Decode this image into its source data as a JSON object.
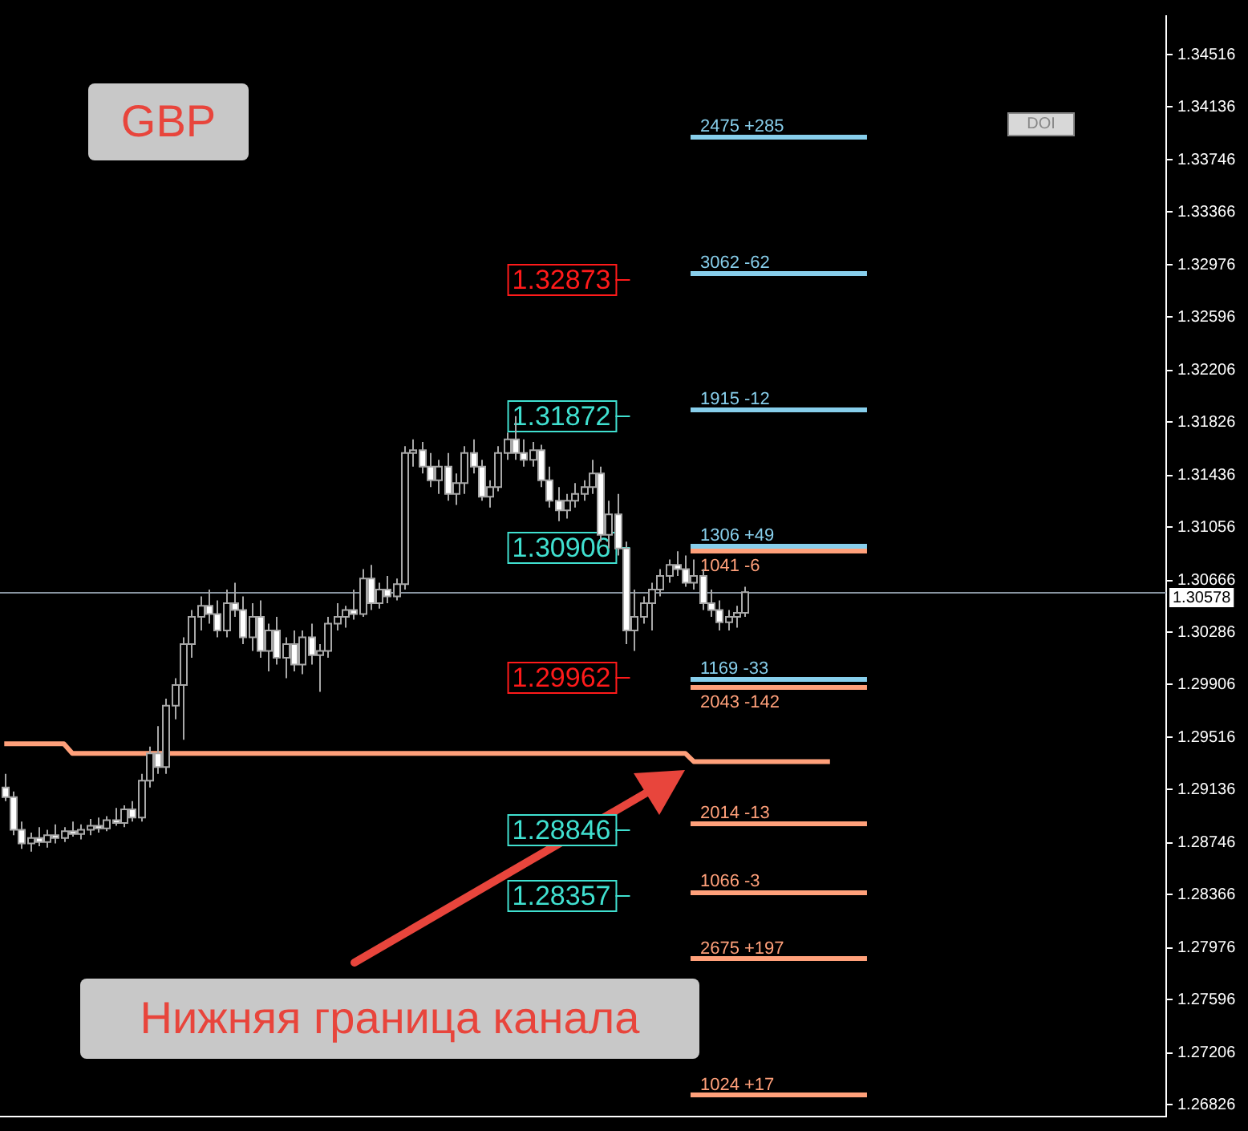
{
  "chart_data": {
    "type": "candlestick",
    "title": "GBP",
    "categories": [
      null,
      null,
      null,
      null,
      null,
      null,
      null,
      null,
      null,
      null,
      null,
      null,
      null,
      null,
      null,
      null,
      null,
      null,
      null,
      null,
      null,
      null,
      null,
      null,
      null,
      null,
      null,
      null,
      null,
      null,
      null,
      null,
      null,
      null,
      null,
      null,
      null,
      null,
      null,
      null,
      null,
      null,
      null,
      null,
      null,
      null,
      null,
      null,
      null,
      null,
      null,
      null,
      null,
      null,
      null,
      null,
      null,
      null,
      null,
      null,
      null,
      null,
      null,
      null,
      null,
      null,
      null,
      null,
      null,
      null,
      null,
      null,
      null,
      null,
      null,
      null,
      null,
      null,
      null,
      null,
      null,
      null,
      null,
      null,
      null,
      null,
      null,
      null,
      null,
      null,
      null,
      null,
      null,
      null,
      null,
      null,
      null,
      null,
      null,
      null,
      null,
      null,
      null,
      null,
      null,
      null,
      null,
      null,
      null,
      null,
      null,
      null,
      null,
      null,
      null,
      null,
      null,
      null,
      null,
      null,
      null,
      null,
      null,
      null,
      null,
      null,
      null,
      null,
      null,
      null,
      null,
      null,
      null,
      null,
      null,
      null,
      null
    ],
    "ohlc": [
      [
        1.2915,
        1.2925,
        1.2905,
        1.2908
      ],
      [
        1.2908,
        1.2912,
        1.288,
        1.2884
      ],
      [
        1.2884,
        1.289,
        1.287,
        1.2874
      ],
      [
        1.2874,
        1.2882,
        1.2868,
        1.2878
      ],
      [
        1.2878,
        1.2886,
        1.2872,
        1.2875
      ],
      [
        1.2875,
        1.2884,
        1.2871,
        1.288
      ],
      [
        1.288,
        1.2888,
        1.2874,
        1.2878
      ],
      [
        1.2878,
        1.2886,
        1.2875,
        1.2883
      ],
      [
        1.2883,
        1.289,
        1.2879,
        1.2881
      ],
      [
        1.2881,
        1.2888,
        1.2877,
        1.2884
      ],
      [
        1.2884,
        1.2892,
        1.288,
        1.2887
      ],
      [
        1.2887,
        1.2893,
        1.2882,
        1.2885
      ],
      [
        1.2885,
        1.2894,
        1.2883,
        1.2891
      ],
      [
        1.2891,
        1.29,
        1.2887,
        1.2889
      ],
      [
        1.2889,
        1.2902,
        1.2886,
        1.2899
      ],
      [
        1.2899,
        1.2905,
        1.289,
        1.2893
      ],
      [
        1.2893,
        1.2925,
        1.289,
        1.292
      ],
      [
        1.292,
        1.2945,
        1.2915,
        1.294
      ],
      [
        1.294,
        1.296,
        1.2925,
        1.293
      ],
      [
        1.293,
        1.298,
        1.2925,
        1.2975
      ],
      [
        1.2975,
        1.2995,
        1.2965,
        1.299
      ],
      [
        1.299,
        1.3025,
        1.295,
        1.302
      ],
      [
        1.302,
        1.3045,
        1.301,
        1.304
      ],
      [
        1.304,
        1.3055,
        1.303,
        1.3048
      ],
      [
        1.3048,
        1.306,
        1.3035,
        1.3042
      ],
      [
        1.3042,
        1.3052,
        1.3025,
        1.303
      ],
      [
        1.303,
        1.306,
        1.3025,
        1.305
      ],
      [
        1.305,
        1.3065,
        1.304,
        1.3045
      ],
      [
        1.3045,
        1.3055,
        1.302,
        1.3025
      ],
      [
        1.3025,
        1.305,
        1.3015,
        1.304
      ],
      [
        1.304,
        1.3052,
        1.301,
        1.3015
      ],
      [
        1.3015,
        1.3035,
        1.3,
        1.303
      ],
      [
        1.303,
        1.304,
        1.3005,
        1.301
      ],
      [
        1.301,
        1.3025,
        1.2995,
        1.302
      ],
      [
        1.302,
        1.303,
        1.3,
        1.3005
      ],
      [
        1.3005,
        1.303,
        1.2998,
        1.3025
      ],
      [
        1.3025,
        1.3035,
        1.3005,
        1.3012
      ],
      [
        1.3012,
        1.302,
        1.2985,
        1.3015
      ],
      [
        1.3015,
        1.304,
        1.301,
        1.3035
      ],
      [
        1.3035,
        1.305,
        1.303,
        1.304
      ],
      [
        1.304,
        1.3048,
        1.3032,
        1.3045
      ],
      [
        1.3045,
        1.306,
        1.3038,
        1.3042
      ],
      [
        1.3042,
        1.3075,
        1.304,
        1.3068
      ],
      [
        1.3068,
        1.3078,
        1.3045,
        1.305
      ],
      [
        1.305,
        1.3065,
        1.3046,
        1.306
      ],
      [
        1.306,
        1.307,
        1.305,
        1.3055
      ],
      [
        1.3055,
        1.3068,
        1.3052,
        1.3064
      ],
      [
        1.3064,
        1.3165,
        1.306,
        1.316
      ],
      [
        1.316,
        1.317,
        1.315,
        1.3162
      ],
      [
        1.3162,
        1.3168,
        1.3145,
        1.315
      ],
      [
        1.315,
        1.316,
        1.3135,
        1.314
      ],
      [
        1.314,
        1.3155,
        1.313,
        1.315
      ],
      [
        1.315,
        1.316,
        1.3125,
        1.313
      ],
      [
        1.313,
        1.3145,
        1.3122,
        1.3138
      ],
      [
        1.3138,
        1.3165,
        1.313,
        1.316
      ],
      [
        1.316,
        1.317,
        1.3145,
        1.315
      ],
      [
        1.315,
        1.3155,
        1.3125,
        1.3128
      ],
      [
        1.3128,
        1.314,
        1.312,
        1.3135
      ],
      [
        1.3135,
        1.3165,
        1.3132,
        1.316
      ],
      [
        1.316,
        1.3175,
        1.3155,
        1.317
      ],
      [
        1.317,
        1.3187,
        1.3155,
        1.316
      ],
      [
        1.316,
        1.317,
        1.315,
        1.3155
      ],
      [
        1.3155,
        1.3168,
        1.315,
        1.3162
      ],
      [
        1.3162,
        1.3166,
        1.3135,
        1.314
      ],
      [
        1.314,
        1.315,
        1.312,
        1.3125
      ],
      [
        1.3125,
        1.3135,
        1.311,
        1.3118
      ],
      [
        1.3118,
        1.313,
        1.3112,
        1.3125
      ],
      [
        1.3125,
        1.3138,
        1.312,
        1.313
      ],
      [
        1.313,
        1.314,
        1.3125,
        1.3135
      ],
      [
        1.3135,
        1.3155,
        1.313,
        1.3145
      ],
      [
        1.3145,
        1.315,
        1.3095,
        1.31
      ],
      [
        1.31,
        1.3125,
        1.309,
        1.3115
      ],
      [
        1.3115,
        1.313,
        1.3085,
        1.309
      ],
      [
        1.309,
        1.3095,
        1.302,
        1.303
      ],
      [
        1.303,
        1.306,
        1.3015,
        1.304
      ],
      [
        1.304,
        1.3055,
        1.3035,
        1.305
      ],
      [
        1.305,
        1.3065,
        1.303,
        1.306
      ],
      [
        1.306,
        1.3075,
        1.3055,
        1.307
      ],
      [
        1.307,
        1.3082,
        1.3065,
        1.3078
      ],
      [
        1.3078,
        1.3088,
        1.307,
        1.3075
      ],
      [
        1.3075,
        1.3085,
        1.3062,
        1.3065
      ],
      [
        1.3065,
        1.3082,
        1.306,
        1.307
      ],
      [
        1.307,
        1.3075,
        1.3045,
        1.305
      ],
      [
        1.305,
        1.306,
        1.304,
        1.3045
      ],
      [
        1.3045,
        1.3052,
        1.303,
        1.3036
      ],
      [
        1.3036,
        1.3045,
        1.303,
        1.304
      ],
      [
        1.304,
        1.3048,
        1.3032,
        1.3043
      ],
      [
        1.3043,
        1.3062,
        1.304,
        1.3058
      ],
      null,
      null,
      null,
      null,
      null,
      null,
      null,
      null,
      null,
      null,
      null,
      null,
      null,
      null,
      null,
      null,
      null,
      null,
      null,
      null,
      null,
      null,
      null,
      null,
      null,
      null,
      null,
      null,
      null,
      null,
      null,
      null,
      null,
      null,
      null,
      null,
      null,
      null,
      null,
      null,
      null,
      null,
      null,
      null,
      null,
      null,
      null,
      null,
      null
    ],
    "series": [
      {
        "type": "line",
        "color": "#ffa07a",
        "values": [
          1.2947,
          1.2947,
          1.2947,
          1.2947,
          1.2947,
          1.2947,
          1.2947,
          1.2947,
          1.294,
          1.294,
          1.294,
          1.294,
          1.294,
          1.294,
          1.294,
          1.294,
          1.294,
          1.294,
          1.294,
          1.294,
          1.294,
          1.294,
          1.294,
          1.294,
          1.294,
          1.294,
          1.294,
          1.294,
          1.294,
          1.294,
          1.294,
          1.294,
          1.294,
          1.294,
          1.294,
          1.294,
          1.294,
          1.294,
          1.294,
          1.294,
          1.294,
          1.294,
          1.294,
          1.294,
          1.294,
          1.294,
          1.294,
          1.294,
          1.294,
          1.294,
          1.294,
          1.294,
          1.294,
          1.294,
          1.294,
          1.294,
          1.294,
          1.294,
          1.294,
          1.294,
          1.294,
          1.294,
          1.294,
          1.294,
          1.294,
          1.294,
          1.294,
          1.294,
          1.294,
          1.294,
          1.294,
          1.294,
          1.294,
          1.294,
          1.294,
          1.294,
          1.294,
          1.294,
          1.294,
          1.294,
          1.294,
          1.2934,
          1.2934,
          1.2934,
          1.2934,
          1.2934,
          1.2934,
          1.2934,
          1.2934,
          1.2934,
          1.2934,
          1.2934,
          1.2934,
          1.2934,
          1.2934,
          1.2934,
          1.2934,
          1.2934,
          null,
          null,
          null,
          null,
          null,
          null,
          null,
          null,
          null,
          null,
          null,
          null,
          null,
          null,
          null,
          null,
          null,
          null,
          null,
          null,
          null,
          null,
          null,
          null,
          null,
          null,
          null,
          null,
          null,
          null,
          null,
          null,
          null,
          null,
          null,
          null,
          null,
          null,
          null
        ]
      }
    ],
    "ylim": [
      1.2674,
      1.348
    ],
    "yticks": [
      1.34516,
      1.34136,
      1.33746,
      1.33366,
      1.32976,
      1.32596,
      1.32206,
      1.31826,
      1.31436,
      1.31056,
      1.30666,
      1.30286,
      1.29906,
      1.29516,
      1.29136,
      1.28746,
      1.28366,
      1.27976,
      1.27596,
      1.27206,
      1.26826
    ],
    "tick_labels": "y",
    "grid": false,
    "legend": false,
    "ref_lines": [
      {
        "axis": "y",
        "value": 1.30578,
        "label": "1.30578",
        "color": "#8894a0"
      },
      {
        "axis": "y",
        "value": 1.3392,
        "color": "#87ceeb"
      },
      {
        "axis": "y",
        "value": 1.3292,
        "color": "#87ceeb"
      },
      {
        "axis": "y",
        "value": 1.3192,
        "color": "#87ceeb"
      },
      {
        "axis": "y",
        "value": 1.3092,
        "color": "#87ceeb"
      },
      {
        "axis": "y",
        "value": 1.3089,
        "color": "#ffa07a"
      },
      {
        "axis": "y",
        "value": 1.2995,
        "color": "#87ceeb"
      },
      {
        "axis": "y",
        "value": 1.2989,
        "color": "#ffa07a"
      },
      {
        "axis": "y",
        "value": 1.2889,
        "color": "#ffa07a"
      },
      {
        "axis": "y",
        "value": 1.2839,
        "color": "#ffa07a"
      },
      {
        "axis": "y",
        "value": 1.279,
        "color": "#ffa07a"
      },
      {
        "axis": "y",
        "value": 1.269,
        "color": "#ffa07a"
      },
      {
        "axis": "y",
        "value": 1.32873,
        "label": "1.32873",
        "color": "#ff1a1a"
      },
      {
        "axis": "y",
        "value": 1.31872,
        "label": "1.31872",
        "color": "#40e0d0"
      },
      {
        "axis": "y",
        "value": 1.30906,
        "label": "1.30906",
        "color": "#40e0d0"
      },
      {
        "axis": "y",
        "value": 1.29962,
        "label": "1.29962",
        "color": "#ff1a1a"
      },
      {
        "axis": "y",
        "value": 1.28846,
        "label": "1.28846",
        "color": "#40e0d0"
      },
      {
        "axis": "y",
        "value": 1.28357,
        "label": "1.28357",
        "color": "#40e0d0"
      }
    ],
    "annotations": [
      "Нижняя граница канала",
      "DOI",
      {
        "text": "2475 +285",
        "y": 1.3392
      },
      {
        "text": "3062 -62",
        "y": 1.3292
      },
      {
        "text": "1915 -12",
        "y": 1.3192
      },
      {
        "text": "1306 +49",
        "y": 1.3092
      },
      {
        "text": "1041 -6",
        "y": 1.3089
      },
      {
        "text": "1169 -33",
        "y": 1.2995
      },
      {
        "text": "2043 -142",
        "y": 1.2989
      },
      {
        "text": "2014 -13",
        "y": 1.2889
      },
      {
        "text": "1066 -3",
        "y": 1.2839
      },
      {
        "text": "2675 +197",
        "y": 1.279
      },
      {
        "text": "1024 +17",
        "y": 1.269
      }
    ]
  }
}
